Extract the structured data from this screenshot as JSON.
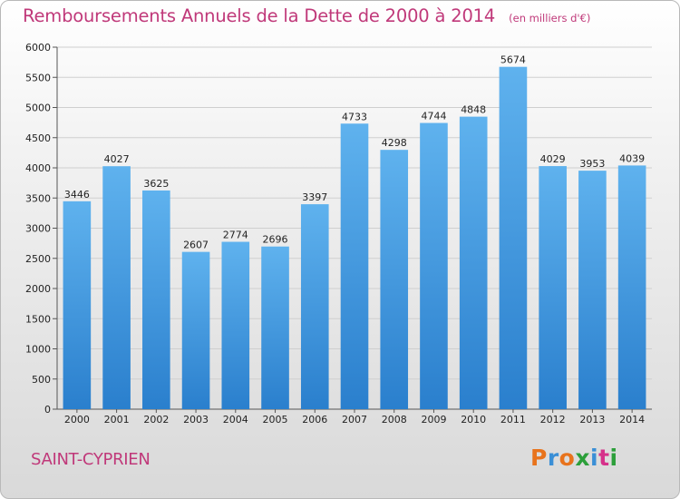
{
  "header": {
    "title": "Remboursements Annuels de la Dette de 2000 à 2014",
    "subtitle": "(en milliers d'€)"
  },
  "footer": {
    "commune": "SAINT-CYPRIEN",
    "logo_text": "Proxiti",
    "logo_colors": [
      "#e8731c",
      "#3a8fd6",
      "#e8731c",
      "#2c9f3a",
      "#3a8fd6",
      "#d6318a",
      "#2c9f3a"
    ]
  },
  "colors": {
    "bar_top": "#5fb2ee",
    "bar_bottom": "#2a7fcd",
    "title": "#c0397a",
    "grid": "#cfcfcf"
  },
  "chart_data": {
    "type": "bar",
    "title": "Remboursements Annuels de la Dette de 2000 à 2014",
    "xlabel": "",
    "ylabel": "",
    "categories": [
      "2000",
      "2001",
      "2002",
      "2003",
      "2004",
      "2005",
      "2006",
      "2007",
      "2008",
      "2009",
      "2010",
      "2011",
      "2012",
      "2013",
      "2014"
    ],
    "values": [
      3446,
      4027,
      3625,
      2607,
      2774,
      2696,
      3397,
      4733,
      4298,
      4744,
      4848,
      5674,
      4029,
      3953,
      4039
    ],
    "ylim": [
      0,
      6000
    ],
    "yticks": [
      0,
      500,
      1000,
      1500,
      2000,
      2500,
      3000,
      3500,
      4000,
      4500,
      5000,
      5500,
      6000
    ],
    "grid": true,
    "data_labels": true
  }
}
